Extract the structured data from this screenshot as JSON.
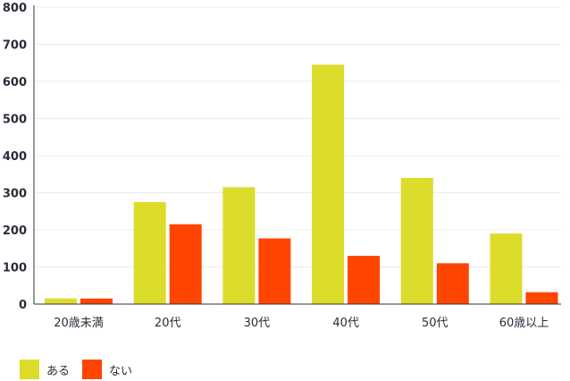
{
  "chart_data": {
    "type": "bar",
    "categories": [
      "20歳未満",
      "20代",
      "30代",
      "40代",
      "50代",
      "60歳以上"
    ],
    "series": [
      {
        "name": "ある",
        "color": "#dcdc2a",
        "values": [
          15,
          275,
          315,
          645,
          340,
          190
        ]
      },
      {
        "name": "ない",
        "color": "#ff4500",
        "values": [
          15,
          215,
          177,
          130,
          110,
          32
        ]
      }
    ],
    "ylim": [
      0,
      800
    ],
    "yticks": [
      0,
      100,
      200,
      300,
      400,
      500,
      600,
      700,
      800
    ],
    "grid": true,
    "legend_position": "bottom-left"
  }
}
